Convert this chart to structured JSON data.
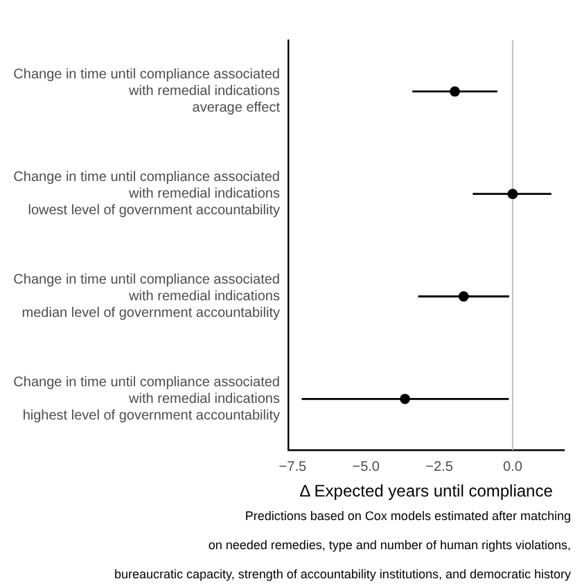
{
  "chart_data": {
    "type": "scatter",
    "orientation": "horizontal",
    "xlabel": "Δ Expected years until compliance",
    "categories": [
      "Change in time until compliance associated\nwith remedial indications\naverage effect",
      "Change in time until compliance associated\nwith remedial indications\nlowest level of government accountability",
      "Change in time until compliance associated\nwith remedial indications\nmedian level of government accountability",
      "Change in time until compliance associated\nwith remedial indications\nhighest level of government accountability"
    ],
    "values": [
      -1.97,
      0.0,
      -1.67,
      -3.67
    ],
    "errors": [
      [
        -3.42,
        -0.52
      ],
      [
        -1.36,
        1.32
      ],
      [
        -3.22,
        -0.12
      ],
      [
        -7.19,
        -0.13
      ]
    ],
    "color": "#000000",
    "marker": "circle",
    "grid": false,
    "legend": false,
    "xlim": [
      -7.65,
      1.75
    ],
    "xticks": [
      {
        "value": -7.5,
        "label": "−7.5"
      },
      {
        "value": -5,
        "label": "−5.0"
      },
      {
        "value": -2.5,
        "label": "−2.5"
      },
      {
        "value": 0,
        "label": "0.0"
      }
    ],
    "ref_lines": [
      {
        "axis": "x",
        "value": 0,
        "color": "#bebebe"
      }
    ],
    "annotations": [
      "Predictions based on Cox models estimated after matching",
      "on needed remedies, type and number of human rights violations,",
      "bureaucratic capacity, strength of accountability institutions, and democratic history"
    ]
  }
}
